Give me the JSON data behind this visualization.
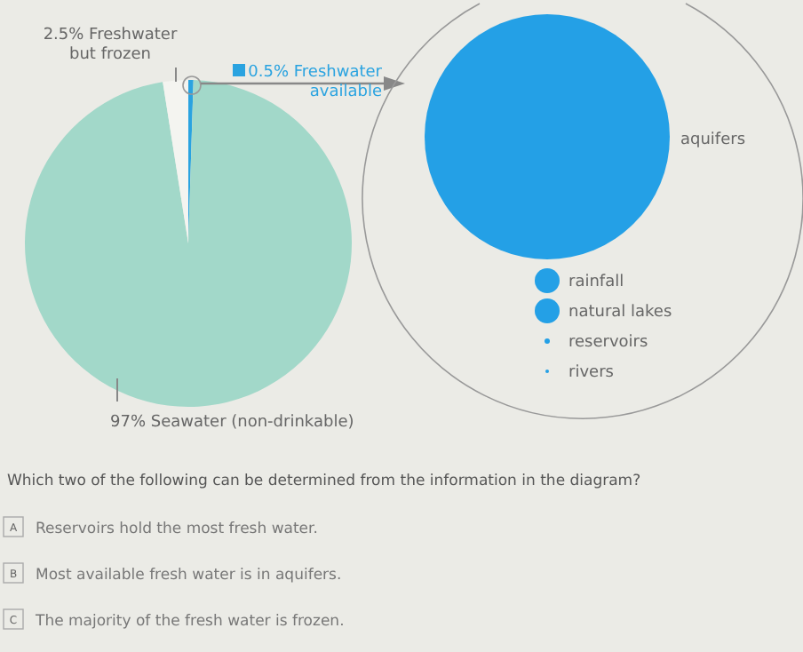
{
  "chart_data": {
    "type": "pie",
    "categories": [
      "0.5% Freshwater\navailable",
      "97% Seawater (non-drinkable)",
      "2.5% Freshwater\nbut frozen"
    ],
    "values": [
      0.5,
      97,
      2.5
    ],
    "colors": [
      "#2aa3e0",
      "#a2d8c9",
      "#f4f4f0"
    ],
    "annotations": [
      "aquifers",
      "rainfall",
      "natural lakes",
      "reservoirs",
      "rivers",
      "Which two of the following can be determined from the information in the diagram?",
      "A",
      "Reservoirs hold the most fresh water.",
      "B",
      "Most available fresh water is in aquifers.",
      "C",
      "The majority of the fresh water is frozen."
    ]
  }
}
